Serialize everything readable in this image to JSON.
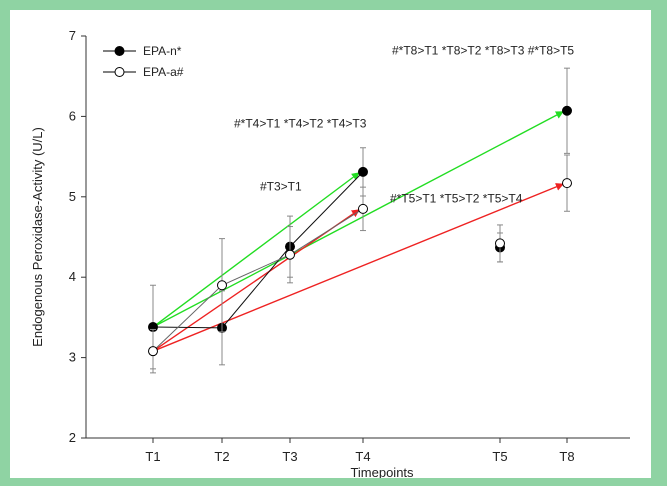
{
  "chart_data": {
    "type": "line",
    "xlabel": "Timepoints",
    "ylabel": "Endogenous Peroxidase-Activity (U/L)",
    "ylim": [
      2,
      7
    ],
    "yticks": [
      "2",
      "3",
      "4",
      "5",
      "6",
      "7"
    ],
    "categories": [
      "T1",
      "T2",
      "T3",
      "T4",
      "T5",
      "T8"
    ],
    "series": [
      {
        "name": "EPA-n*",
        "marker": "filled-circle",
        "values": [
          3.38,
          3.37,
          4.38,
          5.31,
          4.37,
          6.07
        ],
        "error": [
          0.52,
          0.46,
          0.38,
          0.3,
          0.18,
          0.53
        ],
        "connect_to": "T4"
      },
      {
        "name": "EPA-a#",
        "marker": "open-circle",
        "values": [
          3.08,
          3.9,
          4.28,
          4.85,
          4.42,
          5.17
        ],
        "error": [
          0.27,
          0.58,
          0.35,
          0.27,
          0.23,
          0.35
        ],
        "connect_to": "T4"
      }
    ],
    "arrows": [
      {
        "from": [
          "T1",
          3.38
        ],
        "to": [
          "T4",
          5.31
        ],
        "color": "#22dd22"
      },
      {
        "from": [
          "T1",
          3.38
        ],
        "to": [
          "T8",
          6.07
        ],
        "color": "#22dd22"
      },
      {
        "from": [
          "T1",
          3.08
        ],
        "to": [
          "T4",
          4.85
        ],
        "color": "#ee2222"
      },
      {
        "from": [
          "T1",
          3.08
        ],
        "to": [
          "T8",
          5.17
        ],
        "color": "#ee2222"
      }
    ],
    "annotations": [
      {
        "text": "#T3>T1",
        "at": [
          "T3",
          5.08
        ]
      },
      {
        "text": "#*T4>T1 *T4>T2 *T4>T3",
        "at": [
          "T3",
          5.86
        ]
      },
      {
        "text": "#*T5>T1 *T5>T2 *T5>T4",
        "at": [
          "T5",
          4.93
        ]
      },
      {
        "text": "#*T8>T1 *T8>T2 *T8>T3 #*T8>T5",
        "at": [
          "T5",
          6.77
        ]
      }
    ],
    "legend_position": "top-left",
    "grid": false
  }
}
